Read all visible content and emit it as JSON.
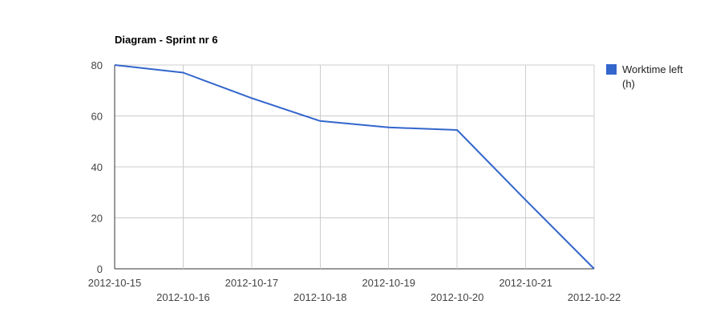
{
  "chart_data": {
    "type": "line",
    "title": "Diagram - Sprint nr 6",
    "xlabel": "",
    "ylabel": "",
    "x": [
      "2012-10-15",
      "2012-10-16",
      "2012-10-17",
      "2012-10-18",
      "2012-10-19",
      "2012-10-20",
      "2012-10-21",
      "2012-10-22"
    ],
    "series": [
      {
        "name": "Worktime left (h)",
        "values": [
          80,
          77,
          67,
          58,
          55.5,
          54.5,
          27,
          0
        ],
        "color": "#3366cc"
      }
    ],
    "ylim": [
      0,
      80
    ],
    "yticks": [
      "0",
      "20",
      "40",
      "60",
      "80"
    ],
    "grid": true,
    "legend": "right",
    "legend_lines": [
      "Worktime left",
      "(h)"
    ]
  }
}
